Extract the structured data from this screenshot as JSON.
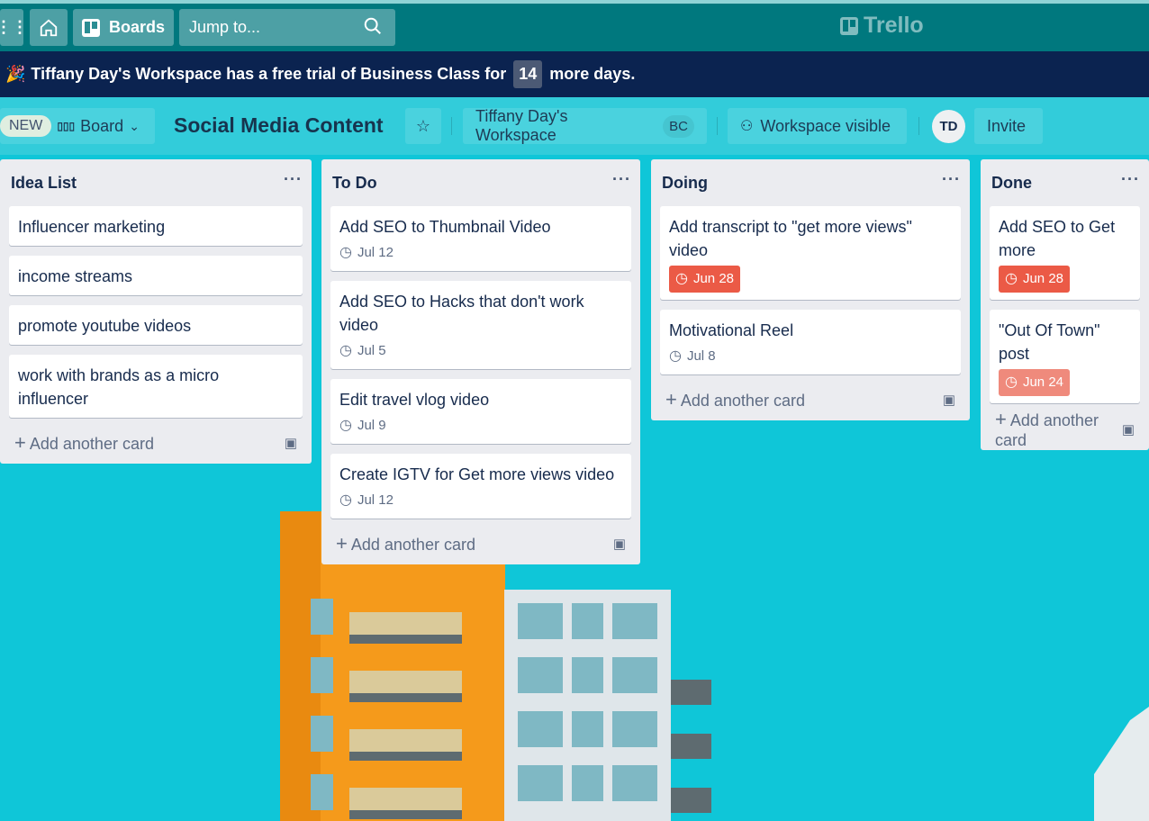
{
  "nav": {
    "boards_label": "Boards",
    "search_placeholder": "Jump to...",
    "logo_text": "Trello"
  },
  "banner": {
    "text_before": "Tiffany Day's Workspace has a free trial of Business Class for",
    "days": "14",
    "text_after": "more days."
  },
  "board_header": {
    "new_badge": "NEW",
    "view_label": "Board",
    "title": "Social Media Content",
    "workspace": "Tiffany Day's Workspace",
    "workspace_badge": "BC",
    "visibility": "Workspace visible",
    "avatar_initials": "TD",
    "invite_label": "Invite"
  },
  "lists": [
    {
      "title": "Idea List",
      "cards": [
        {
          "title": "Influencer marketing"
        },
        {
          "title": "income streams"
        },
        {
          "title": "promote youtube videos"
        },
        {
          "title": "work with brands as a micro influencer"
        }
      ],
      "add_label": "Add another card"
    },
    {
      "title": "To Do",
      "cards": [
        {
          "title": "Add SEO to Thumbnail Video",
          "due": "Jul 12",
          "due_status": "normal"
        },
        {
          "title": "Add SEO to Hacks that don't work video",
          "due": "Jul 5",
          "due_status": "normal"
        },
        {
          "title": "Edit travel vlog video",
          "due": "Jul 9",
          "due_status": "normal"
        },
        {
          "title": "Create IGTV for Get more views video",
          "due": "Jul 12",
          "due_status": "normal"
        }
      ],
      "add_label": "Add another card"
    },
    {
      "title": "Doing",
      "cards": [
        {
          "title": "Add transcript to \"get more views\" video",
          "due": "Jun 28",
          "due_status": "overdue"
        },
        {
          "title": "Motivational Reel",
          "due": "Jul 8",
          "due_status": "normal"
        }
      ],
      "add_label": "Add another card"
    },
    {
      "title": "Done",
      "cards": [
        {
          "title": "Add SEO to Get more",
          "due": "Jun 28",
          "due_status": "overdue"
        },
        {
          "title": "\"Out Of Town\" post",
          "due": "Jun 24",
          "due_status": "past"
        }
      ],
      "add_label": "Add another card"
    }
  ],
  "colors": {
    "nav": "#00787e",
    "banner": "#0b2350",
    "overdue": "#eb5a46",
    "past_due": "#ef8a7c",
    "list_bg": "#ebecf0"
  }
}
